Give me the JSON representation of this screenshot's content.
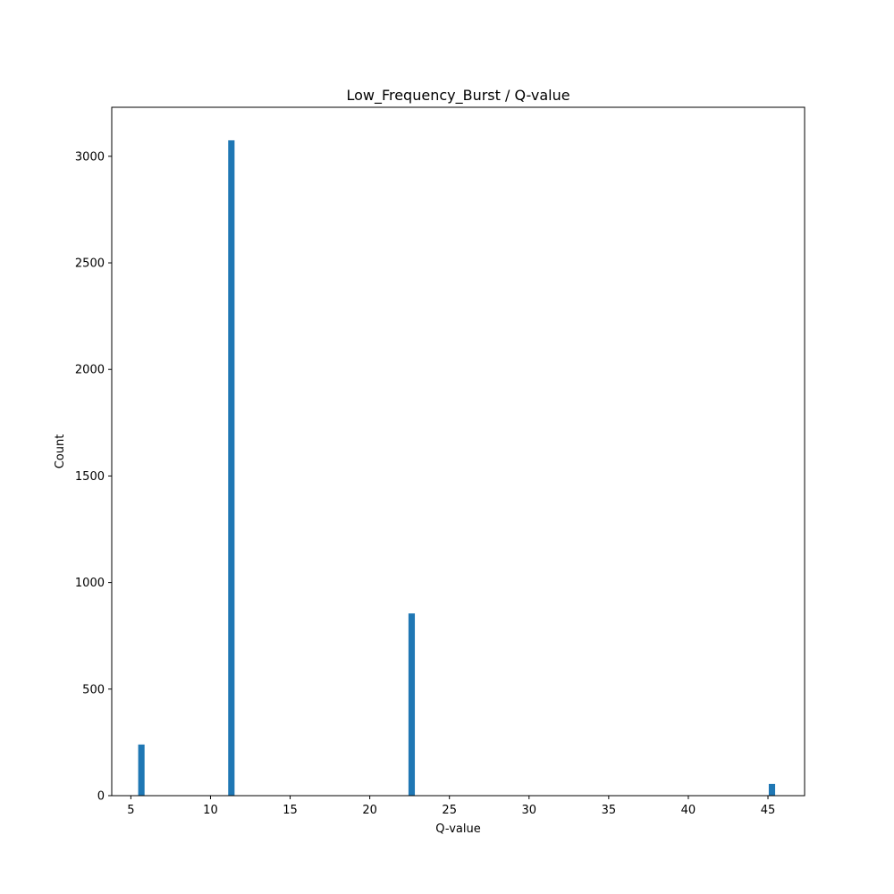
{
  "chart_data": {
    "type": "bar",
    "title": "Low_Frequency_Burst / Q-value",
    "xlabel": "Q-value",
    "ylabel": "Count",
    "xlim": [
      3.8,
      47.3
    ],
    "ylim": [
      0,
      3230
    ],
    "xticks": [
      "5",
      "10",
      "15",
      "20",
      "25",
      "30",
      "35",
      "40",
      "45"
    ],
    "yticks": [
      "0",
      "500",
      "1000",
      "1500",
      "2000",
      "2500",
      "3000"
    ],
    "bin_width": 0.4,
    "x": [
      5.66,
      11.31,
      22.63,
      45.25
    ],
    "values": [
      240,
      3075,
      855,
      55
    ],
    "color": "#1f77b4",
    "grid": false,
    "legend": "none"
  }
}
